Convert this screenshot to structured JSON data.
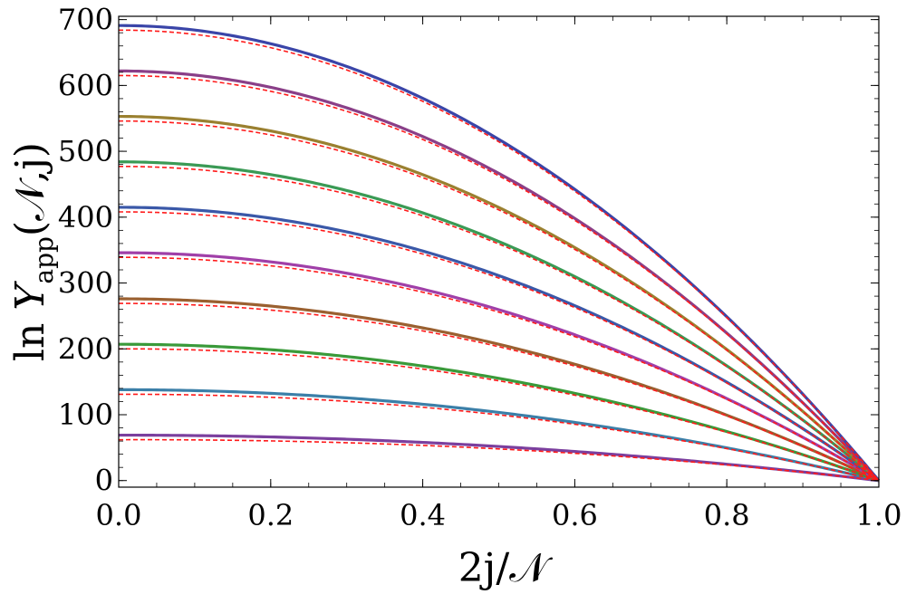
{
  "chart_data": {
    "type": "line",
    "xlabel": "2j/𝒩",
    "ylabel": {
      "prefix": "ln ",
      "var": "Y",
      "sub": "app",
      "suffix": "(𝒩,j)"
    },
    "xlim": [
      0,
      1
    ],
    "ylim": [
      -10,
      705
    ],
    "x_ticks": [
      "0.0",
      "0.2",
      "0.4",
      "0.6",
      "0.8",
      "1.0"
    ],
    "y_ticks": [
      "0",
      "100",
      "200",
      "300",
      "400",
      "500",
      "600",
      "700"
    ],
    "grid": false,
    "shape": "y = y0 * (1 - x^2) approximately; exact dashed curve offset below near x=0",
    "series": [
      {
        "y0": 69,
        "color": "#7b3f9e"
      },
      {
        "y0": 138,
        "color": "#3b7fa8"
      },
      {
        "y0": 207,
        "color": "#3a9a3a"
      },
      {
        "y0": 276,
        "color": "#9a6030"
      },
      {
        "y0": 346,
        "color": "#a03fa8"
      },
      {
        "y0": 415,
        "color": "#3a58a8"
      },
      {
        "y0": 484,
        "color": "#3a9a55"
      },
      {
        "y0": 553,
        "color": "#9a8030"
      },
      {
        "y0": 622,
        "color": "#8a3f88"
      },
      {
        "y0": 691,
        "color": "#3a45a8"
      }
    ],
    "reference_curves": {
      "style": "dashed",
      "color": "#ff1a1a",
      "offset_at_x0": 7
    }
  }
}
